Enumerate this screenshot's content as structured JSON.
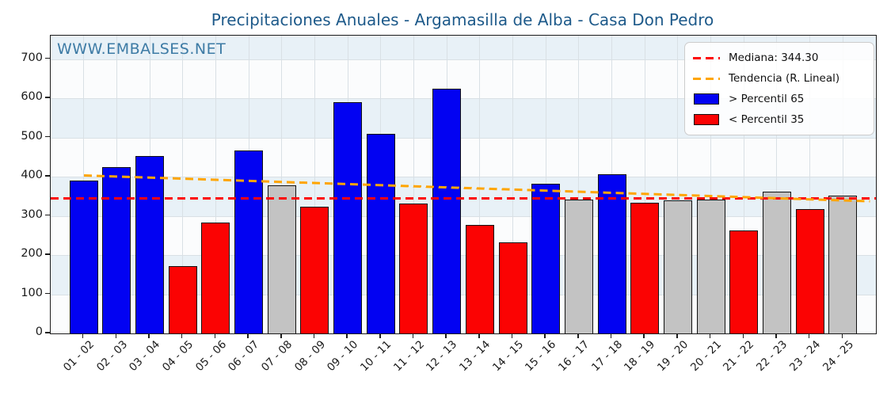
{
  "title": "Precipitaciones Anuales - Argamasilla de Alba - Casa Don Pedro",
  "watermark": "WWW.EMBALSES.NET",
  "legend": {
    "median_label": "Mediana: 344.30",
    "trend_label": "Tendencia (R. Lineal)",
    "p65_label": "> Percentil 65",
    "p35_label": "< Percentil 35"
  },
  "colors": {
    "title_text": "#1e5a8a",
    "watermark_text": "#2f719f",
    "bar_above_p65": "#0202f2",
    "bar_below_p35": "#fb0303",
    "bar_mid": "#c3c3c3",
    "median_line": "#fd0404",
    "trend_line": "#ffa500",
    "band_fill": "#e8f1f7",
    "grid_line": "#d9e0e5"
  },
  "chart_data": {
    "type": "bar",
    "title": "Precipitaciones Anuales - Argamasilla de Alba - Casa Don Pedro",
    "xlabel": "",
    "ylabel": "",
    "categories": [
      "01 - 02",
      "02 - 03",
      "03 - 04",
      "04 - 05",
      "05 - 06",
      "06 - 07",
      "07 - 08",
      "08 - 09",
      "09 - 10",
      "10 - 11",
      "11 - 12",
      "12 - 13",
      "13 - 14",
      "14 - 15",
      "15 - 16",
      "16 - 17",
      "17 - 18",
      "18 - 19",
      "19 - 20",
      "20 - 21",
      "21 - 22",
      "22 - 23",
      "23 - 24",
      "24 - 25"
    ],
    "values": [
      391,
      425,
      452,
      172,
      283,
      466,
      378,
      324,
      591,
      509,
      332,
      625,
      276,
      233,
      383,
      342,
      406,
      334,
      339,
      342,
      262,
      361,
      318,
      351
    ],
    "bar_classes": [
      "p65",
      "p65",
      "p65",
      "p35",
      "p35",
      "p65",
      "mid",
      "p35",
      "p65",
      "p65",
      "p35",
      "p65",
      "p35",
      "p35",
      "p65",
      "mid",
      "p65",
      "p35",
      "mid",
      "mid",
      "p35",
      "mid",
      "p35",
      "mid"
    ],
    "median": 344.3,
    "trend_line": {
      "start_value": 404,
      "end_value": 338
    },
    "ylim": [
      0,
      760
    ],
    "yticks": [
      0,
      100,
      200,
      300,
      400,
      500,
      600,
      700
    ],
    "grid": true,
    "legend_position": "upper right"
  }
}
